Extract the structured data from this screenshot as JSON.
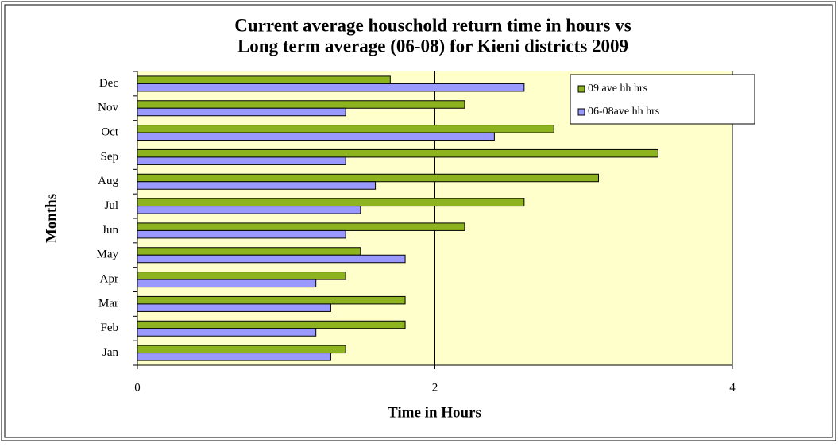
{
  "chart_data": {
    "type": "bar",
    "orientation": "horizontal",
    "title": [
      "Current average houschold return time in hours vs",
      "Long term average (06-08) for Kieni districts 2009"
    ],
    "x_label": "Time in Hours",
    "y_label": "Months",
    "categories": [
      "Jan",
      "Feb",
      "Mar",
      "Apr",
      "May",
      "Jun",
      "Jul",
      "Aug",
      "Sep",
      "Oct",
      "Nov",
      "Dec"
    ],
    "series": [
      {
        "name": "09 ave hh hrs",
        "color": "#8db31f",
        "values": [
          1.4,
          1.8,
          1.8,
          1.4,
          1.5,
          2.2,
          2.6,
          3.1,
          3.5,
          2.8,
          2.2,
          1.7
        ]
      },
      {
        "name": "06-08ave hh hrs",
        "color": "#9999ff",
        "values": [
          1.3,
          1.2,
          1.3,
          1.2,
          1.8,
          1.4,
          1.5,
          1.6,
          1.4,
          2.4,
          1.4,
          2.6
        ]
      }
    ],
    "xlim": [
      0,
      4
    ],
    "xticks": [
      0,
      2,
      4
    ],
    "grid": true,
    "legend": "top-right"
  }
}
